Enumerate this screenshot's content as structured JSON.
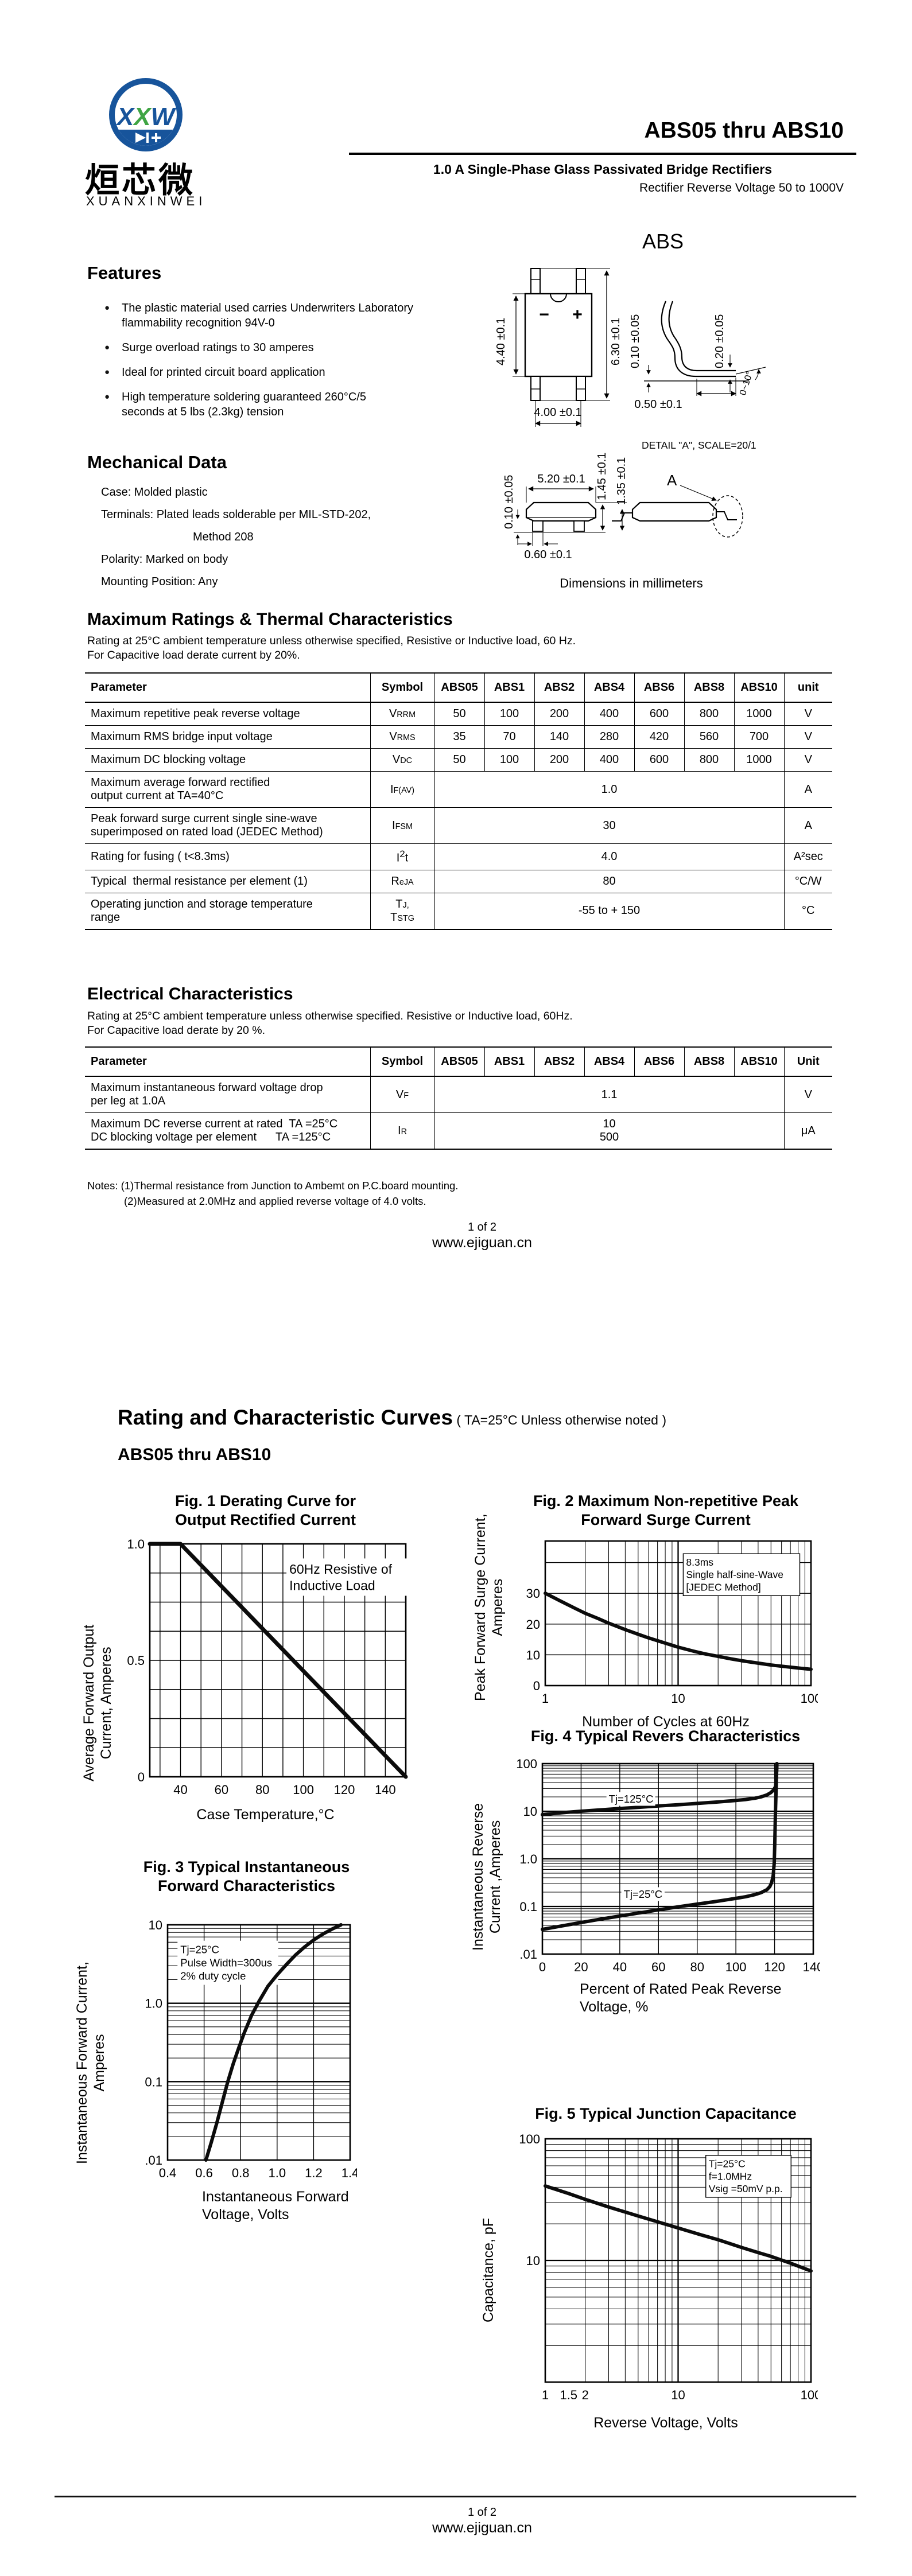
{
  "header": {
    "logo": {
      "letters": [
        "X",
        "X",
        "W"
      ],
      "brand_cn": "烜芯微",
      "brand_en": "XUANXINWEI",
      "blue": "#17549b",
      "green": "#3fa544"
    },
    "title": "ABS05 thru ABS10",
    "subtitle": "1.0 A Single-Phase Glass Passivated Bridge Rectifiers",
    "subtitle2": "Rectifier Reverse Voltage 50 to 1000V"
  },
  "features": {
    "heading": "Features",
    "items": [
      "The plastic material used carries Underwriters Laboratory\nflammability recognition 94V-0",
      "Surge overload ratings to 30 amperes",
      "Ideal for printed circuit board application",
      "High temperature soldering guaranteed 260°C/5\nseconds at 5 lbs (2.3kg) tension"
    ]
  },
  "mechanical": {
    "heading": "Mechanical Data",
    "items": [
      {
        "text": "Case: Molded plastic",
        "indent": false
      },
      {
        "text": "Terminals: Plated leads solderable per MIL-STD-202,",
        "indent": false
      },
      {
        "text": "Method 208",
        "indent": true
      },
      {
        "text": "Polarity: Marked on body",
        "indent": false
      },
      {
        "text": "Mounting Position: Any",
        "indent": false
      }
    ]
  },
  "package_diagram": {
    "package_label": "ABS",
    "caption": "Dimensions in millimeters",
    "polarity_minus": "−",
    "polarity_plus": "+",
    "detail_label": "DETAIL \"A\", SCALE=20/1",
    "a_callout": "A",
    "dims": {
      "body_height": "4.40 ±0.1",
      "overall_height": "6.30 ±0.1",
      "lead_pitch": "4.00 ±0.1",
      "standoff": "0.10 ±0.05",
      "foot_thickness": "0.20 ±0.05",
      "foot_length": "0.50 ±0.1",
      "lead_angle": "0~10°",
      "body_width": "5.20 ±0.1",
      "side_standoff": "0.10 ±0.05",
      "height_overall": "1.45 ±0.1",
      "height_body": "1.35 ±0.1",
      "lead_width": "0.60 ±0.1"
    }
  },
  "max_ratings": {
    "heading": "Maximum Ratings & Thermal Characteristics",
    "note1": "Rating at 25°C ambient temperature unless otherwise specified, Resistive or Inductive load, 60 Hz.",
    "note2": "For Capacitive load derate current by 20%.",
    "columns": [
      "Parameter",
      "Symbol",
      "ABS05",
      "ABS1",
      "ABS2",
      "ABS4",
      "ABS6",
      "ABS8",
      "ABS10",
      "unit"
    ],
    "rows": [
      {
        "param": "Maximum repetitive peak reverse voltage",
        "sym": [
          {
            "m": "V",
            "s": "RRM"
          }
        ],
        "values": [
          "50",
          "100",
          "200",
          "400",
          "600",
          "800",
          "1000"
        ],
        "unit": "V"
      },
      {
        "param": "Maximum RMS bridge input voltage",
        "sym": [
          {
            "m": "V",
            "s": "RMS"
          }
        ],
        "values": [
          "35",
          "70",
          "140",
          "280",
          "420",
          "560",
          "700"
        ],
        "unit": "V"
      },
      {
        "param": "Maximum DC blocking voltage",
        "sym": [
          {
            "m": "V",
            "s": "DC"
          }
        ],
        "values": [
          "50",
          "100",
          "200",
          "400",
          "600",
          "800",
          "1000"
        ],
        "unit": "V"
      },
      {
        "param": "Maximum average forward rectified\noutput current at TA=40°C",
        "sym": [
          {
            "m": "I",
            "s": "F(AV)"
          }
        ],
        "span": "1.0",
        "unit": "A"
      },
      {
        "param": "Peak forward surge current single sine-wave\nsuperimposed on rated load (JEDEC Method)",
        "sym": [
          {
            "m": "I",
            "s": "FSM"
          }
        ],
        "span": "30",
        "unit": "A"
      },
      {
        "param": "Rating for fusing ( t<8.3ms)",
        "sym": [
          {
            "m": "I",
            "sup": "2",
            "post": "t"
          }
        ],
        "span": "4.0",
        "unit": "A²sec"
      },
      {
        "param": "Typical  thermal resistance per element (1)",
        "sym": [
          {
            "m": "R",
            "s": "eJA"
          }
        ],
        "span": "80",
        "unit": "°C/W"
      },
      {
        "param": "Operating junction and storage temperature\nrange",
        "sym": [
          {
            "m": "T",
            "s": "J,"
          },
          {
            "m": "T",
            "s": "STG"
          }
        ],
        "span": "-55 to + 150",
        "unit": "°C"
      }
    ]
  },
  "electrical": {
    "heading": "Electrical Characteristics",
    "note1": "Rating at 25°C ambient temperature unless otherwise specified. Resistive or Inductive load, 60Hz.",
    "note2": "For Capacitive load derate by 20 %.",
    "columns": [
      "Parameter",
      "Symbol",
      "ABS05",
      "ABS1",
      "ABS2",
      "ABS4",
      "ABS6",
      "ABS8",
      "ABS10",
      "Unit"
    ],
    "rows": [
      {
        "param": "Maximum instantaneous forward voltage drop\nper leg at 1.0A",
        "sym": [
          {
            "m": "V",
            "s": "F"
          }
        ],
        "span": "1.1",
        "unit": "V"
      },
      {
        "param": "Maximum DC reverse current at rated  TA =25°C\nDC blocking voltage per element      TA =125°C",
        "sym": [
          {
            "m": "I",
            "s": "R"
          }
        ],
        "span": "10\n500",
        "unit": "μA"
      }
    ],
    "notes": [
      "Notes:  (1)Thermal resistance from Junction to Ambemt on P.C.board mounting.",
      "(2)Measured at 2.0MHz and applied reverse voltage of 4.0 volts."
    ]
  },
  "curves_header": {
    "heading": "Rating and Characteristic Curves",
    "heading_note": " ( TA=25°C Unless otherwise noted )",
    "subheading": "ABS05 thru ABS10"
  },
  "footer": {
    "page_num": "1 of 2",
    "site": "www.ejiguan.cn"
  },
  "chart_data": [
    {
      "id": "fig1",
      "type": "line",
      "title": "Fig. 1 Derating Curve for\nOutput Rectified Current",
      "xlabel": "Case Temperature,°C",
      "ylabel": "Average Forward Output\nCurrent, Amperes",
      "x": {
        "scale": "linear",
        "min": 25,
        "max": 150,
        "grid_step": 10,
        "grid_start": 30,
        "ticks": [
          40,
          60,
          80,
          100,
          120,
          140
        ],
        "tick_labels": [
          "40",
          "60",
          "80",
          "100",
          "120",
          "140"
        ]
      },
      "y": {
        "scale": "linear",
        "min": 0,
        "max": 1.0,
        "grid_step": 0.125,
        "grid_start": 0.125,
        "ticks": [
          0,
          0.5,
          1.0
        ],
        "tick_labels": [
          "0",
          "0.5",
          "1.0"
        ]
      },
      "lw": 7,
      "series": [
        {
          "name": "output-current-derating",
          "points": [
            [
              25,
              1.0
            ],
            [
              40,
              1.0
            ],
            [
              150,
              0
            ]
          ]
        }
      ],
      "annotations": [
        {
          "text": "60Hz Resistive of\nInductive Load",
          "fx": 0.545,
          "fy": 0.07,
          "boxed": false,
          "font": 23
        }
      ]
    },
    {
      "id": "fig2",
      "type": "line",
      "title": "Fig. 2 Maximum Non-repetitive Peak\nForward Surge Current",
      "xlabel": "Number of Cycles at 60Hz",
      "ylabel": "Peak Forward Surge Current,\nAmperes",
      "x": {
        "scale": "log",
        "min": 1,
        "max": 100,
        "ticks": [
          1,
          10,
          100
        ],
        "tick_labels": [
          "1",
          "10",
          "100"
        ]
      },
      "y": {
        "scale": "linear",
        "min": 0,
        "max": 47,
        "grid_step": 10,
        "grid_start": 10,
        "ticks": [
          0,
          10,
          20,
          30
        ],
        "tick_labels": [
          "0",
          "10",
          "20",
          "30"
        ]
      },
      "lw": 6,
      "series": [
        {
          "name": "peak-surge-current",
          "points": [
            [
              1,
              30
            ],
            [
              1.3,
              27.5
            ],
            [
              1.7,
              25
            ],
            [
              2,
              23.5
            ],
            [
              2.5,
              21.8
            ],
            [
              3,
              20.3
            ],
            [
              4,
              18.2
            ],
            [
              5,
              16.7
            ],
            [
              6,
              15.5
            ],
            [
              8,
              13.8
            ],
            [
              10,
              12.5
            ],
            [
              13,
              11.2
            ],
            [
              16,
              10.3
            ],
            [
              20,
              9.5
            ],
            [
              25,
              8.7
            ],
            [
              30,
              8.1
            ],
            [
              40,
              7.3
            ],
            [
              50,
              6.7
            ],
            [
              60,
              6.3
            ],
            [
              80,
              5.7
            ],
            [
              100,
              5.3
            ]
          ]
        }
      ],
      "annotations": [
        {
          "text": "8.3ms\nSingle half-sine-Wave\n[JEDEC Method]",
          "fx": 0.53,
          "fy": 0.1,
          "boxed": true,
          "font": 17.5
        }
      ]
    },
    {
      "id": "fig3",
      "type": "line",
      "title": "Fig. 3 Typical Instantaneous\nForward Characteristics",
      "xlabel": "Instantaneous Forward\nVoltage, Volts",
      "ylabel": "Instantaneous Forward Current,\nAmperes",
      "x": {
        "scale": "linear",
        "min": 0.4,
        "max": 1.4,
        "grid_step": 0.2,
        "grid_start": 0.6,
        "ticks": [
          0.4,
          0.6,
          0.8,
          1.0,
          1.2,
          1.4
        ],
        "tick_labels": [
          "0.4",
          "0.6",
          "0.8",
          "1.0",
          "1.2",
          "1.4"
        ]
      },
      "y": {
        "scale": "log",
        "min": 0.01,
        "max": 10,
        "ticks": [
          0.01,
          0.1,
          1,
          10
        ],
        "tick_labels": [
          ".01",
          "0.1",
          "1.0",
          "10"
        ]
      },
      "lw": 6,
      "series": [
        {
          "name": "forward-characteristic",
          "points": [
            [
              0.61,
              0.01
            ],
            [
              0.64,
              0.017
            ],
            [
              0.67,
              0.03
            ],
            [
              0.7,
              0.055
            ],
            [
              0.73,
              0.1
            ],
            [
              0.76,
              0.17
            ],
            [
              0.79,
              0.27
            ],
            [
              0.82,
              0.42
            ],
            [
              0.86,
              0.7
            ],
            [
              0.9,
              1.05
            ],
            [
              0.95,
              1.65
            ],
            [
              1.0,
              2.3
            ],
            [
              1.05,
              3.1
            ],
            [
              1.1,
              4.1
            ],
            [
              1.15,
              5.2
            ],
            [
              1.2,
              6.4
            ],
            [
              1.25,
              7.6
            ],
            [
              1.3,
              8.8
            ],
            [
              1.35,
              10
            ]
          ]
        }
      ],
      "annotations": [
        {
          "text": "Tj=25°C\nPulse Width=300us\n2% duty cycle",
          "fx": 0.07,
          "fy": 0.075,
          "boxed": false,
          "font": 18.5
        }
      ]
    },
    {
      "id": "fig4",
      "type": "line",
      "title": "Fig. 4 Typical Revers Characteristics",
      "xlabel": "Percent of Rated Peak Reverse\nVoltage, %",
      "ylabel": "Instantaneous Reverse\nCurrent ,Amperes",
      "x": {
        "scale": "linear",
        "min": 0,
        "max": 140,
        "grid_step": 20,
        "grid_start": 20,
        "ticks": [
          0,
          20,
          40,
          60,
          80,
          100,
          120,
          140
        ],
        "tick_labels": [
          "0",
          "20",
          "40",
          "60",
          "80",
          "100",
          "120",
          "140"
        ]
      },
      "y": {
        "scale": "log",
        "min": 0.01,
        "max": 100,
        "ticks": [
          0.01,
          0.1,
          1,
          10,
          100
        ],
        "tick_labels": [
          ".01",
          "0.1",
          "1.0",
          "10",
          "100"
        ]
      },
      "lw": 6,
      "series": [
        {
          "name": "Tj=125°C",
          "points": [
            [
              0,
              8.5
            ],
            [
              10,
              9.3
            ],
            [
              20,
              10
            ],
            [
              30,
              10.7
            ],
            [
              40,
              11.4
            ],
            [
              50,
              12.1
            ],
            [
              60,
              12.9
            ],
            [
              70,
              13.7
            ],
            [
              80,
              14.6
            ],
            [
              90,
              15.6
            ],
            [
              100,
              16.8
            ],
            [
              105,
              17.6
            ],
            [
              110,
              18.8
            ],
            [
              113,
              20
            ],
            [
              116,
              22
            ],
            [
              118,
              24.5
            ],
            [
              119.5,
              28
            ],
            [
              120.5,
              33
            ],
            [
              121,
              55
            ],
            [
              121.2,
              100
            ]
          ]
        },
        {
          "name": "Tj=25°C",
          "points": [
            [
              0,
              0.033
            ],
            [
              10,
              0.039
            ],
            [
              20,
              0.046
            ],
            [
              30,
              0.054
            ],
            [
              40,
              0.063
            ],
            [
              50,
              0.073
            ],
            [
              60,
              0.085
            ],
            [
              70,
              0.098
            ],
            [
              80,
              0.112
            ],
            [
              90,
              0.128
            ],
            [
              100,
              0.148
            ],
            [
              105,
              0.16
            ],
            [
              110,
              0.178
            ],
            [
              113,
              0.195
            ],
            [
              116,
              0.225
            ],
            [
              117.5,
              0.26
            ],
            [
              118.5,
              0.32
            ],
            [
              119.3,
              0.45
            ],
            [
              119.8,
              0.8
            ],
            [
              120.1,
              2
            ],
            [
              120.4,
              8
            ],
            [
              120.8,
              30
            ],
            [
              121,
              60
            ],
            [
              121.2,
              100
            ]
          ]
        }
      ],
      "curve_labels": [
        {
          "text": "Tj=125°C",
          "fx": 0.245,
          "fy": 0.155,
          "font": 18.5
        },
        {
          "text": "Tj=25°C",
          "fx": 0.3,
          "fy": 0.655,
          "font": 18.5
        }
      ],
      "annotations": []
    },
    {
      "id": "fig5",
      "type": "line",
      "title": "Fig. 5 Typical Junction Capacitance",
      "xlabel": "Reverse Voltage, Volts",
      "ylabel": "Capacitance, pF",
      "x": {
        "scale": "log",
        "min": 1,
        "max": 100,
        "ticks": [
          1,
          1.5,
          2,
          10,
          100
        ],
        "tick_labels": [
          "1",
          "1.5",
          "2",
          "10",
          "100"
        ]
      },
      "y": {
        "scale": "log",
        "min": 1,
        "max": 100,
        "ticks": [
          10,
          100
        ],
        "tick_labels": [
          "10",
          "100"
        ]
      },
      "lw": 6,
      "series": [
        {
          "name": "junction-capacitance",
          "points": [
            [
              1,
              41
            ],
            [
              1.5,
              35.5
            ],
            [
              2,
              31.8
            ],
            [
              3,
              27.5
            ],
            [
              4,
              25
            ],
            [
              5,
              23.2
            ],
            [
              7,
              20.8
            ],
            [
              10,
              18.5
            ],
            [
              15,
              16.2
            ],
            [
              20,
              14.8
            ],
            [
              30,
              12.8
            ],
            [
              40,
              11.6
            ],
            [
              50,
              10.8
            ],
            [
              70,
              9.5
            ],
            [
              100,
              8.2
            ]
          ]
        }
      ],
      "annotations": [
        {
          "text": "Tj=25°C\nf=1.0MHz\nVsig =50mV p.p.",
          "fx": 0.615,
          "fy": 0.075,
          "boxed": true,
          "font": 17.5
        }
      ]
    }
  ]
}
